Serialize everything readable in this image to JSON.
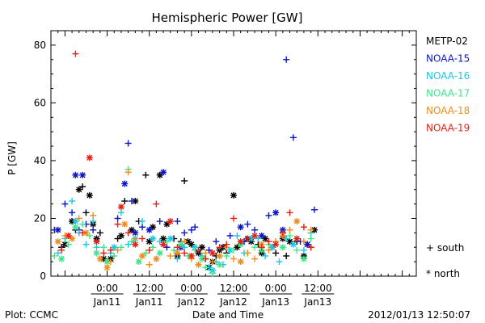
{
  "chart_data": {
    "type": "scatter",
    "title": "Hemispheric Power [GW]",
    "ylabel": "P [GW]",
    "xlabel": "Date and Time",
    "ylim": [
      0,
      85
    ],
    "yticks": [
      0,
      20,
      40,
      60,
      80
    ],
    "xlim_hours": [
      -16,
      88
    ],
    "xtick_labels": [
      {
        "hour": 0,
        "time": "0:00",
        "date": "Jan11"
      },
      {
        "hour": 12,
        "time": "12:00",
        "date": "Jan11"
      },
      {
        "hour": 24,
        "time": "0:00",
        "date": "Jan12"
      },
      {
        "hour": 36,
        "time": "12:00",
        "date": "Jan12"
      },
      {
        "hour": 48,
        "time": "0:00",
        "date": "Jan13"
      },
      {
        "hour": 60,
        "time": "12:00",
        "date": "Jan13"
      }
    ],
    "x_units": "hours relative to 2012/01/11 00:00 UT",
    "markers_legend": {
      "plus": "south",
      "star": "north"
    },
    "footer_left": "Plot: CCMC",
    "footer_right": "2012/01/13 12:50:07",
    "series": [
      {
        "name": "METP-02",
        "color": "#000000",
        "points": [
          [
            -13,
            10,
            "s"
          ],
          [
            -12,
            11,
            "n"
          ],
          [
            -10,
            19,
            "n"
          ],
          [
            -9,
            16,
            "s"
          ],
          [
            -8,
            30,
            "n"
          ],
          [
            -7,
            31,
            "s"
          ],
          [
            -6,
            22,
            "s"
          ],
          [
            -5,
            28,
            "n"
          ],
          [
            -4,
            18,
            "n"
          ],
          [
            -3,
            13,
            "n"
          ],
          [
            -2,
            15,
            "s"
          ],
          [
            -1,
            6,
            "n"
          ],
          [
            1,
            6,
            "n"
          ],
          [
            3,
            13,
            "s"
          ],
          [
            4,
            14,
            "n"
          ],
          [
            5,
            26,
            "s"
          ],
          [
            7,
            16,
            "n"
          ],
          [
            8,
            26,
            "n"
          ],
          [
            9,
            19,
            "s"
          ],
          [
            11,
            35,
            "s"
          ],
          [
            12,
            12,
            "n"
          ],
          [
            13,
            17,
            "n"
          ],
          [
            15,
            35,
            "n"
          ],
          [
            16,
            13,
            "n"
          ],
          [
            17,
            18,
            "n"
          ],
          [
            19,
            13,
            "s"
          ],
          [
            20,
            7,
            "n"
          ],
          [
            21,
            12,
            "s"
          ],
          [
            22,
            33,
            "s"
          ],
          [
            23,
            12,
            "n"
          ],
          [
            24,
            11,
            "n"
          ],
          [
            26,
            8,
            "n"
          ],
          [
            27,
            10,
            "n"
          ],
          [
            28,
            6,
            "s"
          ],
          [
            29,
            3,
            "n"
          ],
          [
            30,
            5,
            "n"
          ],
          [
            31,
            7,
            "s"
          ],
          [
            32,
            9,
            "n"
          ],
          [
            33,
            10,
            "n"
          ],
          [
            34,
            8,
            "s"
          ],
          [
            36,
            28,
            "n"
          ],
          [
            37,
            10,
            "n"
          ],
          [
            38,
            11,
            "s"
          ],
          [
            40,
            13,
            "n"
          ],
          [
            41,
            12,
            "n"
          ],
          [
            43,
            11,
            "s"
          ],
          [
            44,
            8,
            "n"
          ],
          [
            45,
            13,
            "n"
          ],
          [
            47,
            10,
            "n"
          ],
          [
            48,
            8,
            "s"
          ],
          [
            50,
            13,
            "n"
          ],
          [
            51,
            7,
            "s"
          ],
          [
            52,
            12,
            "n"
          ],
          [
            54,
            12,
            "s"
          ],
          [
            56,
            7,
            "n"
          ],
          [
            57,
            11,
            "n"
          ],
          [
            58,
            10,
            "s"
          ],
          [
            59,
            16,
            "n"
          ]
        ]
      },
      {
        "name": "NOAA-15",
        "color": "#0a14c8",
        "points": [
          [
            -15,
            16,
            "s"
          ],
          [
            -14,
            16,
            "n"
          ],
          [
            -12,
            25,
            "s"
          ],
          [
            -10,
            22,
            "s"
          ],
          [
            -9,
            35,
            "n"
          ],
          [
            -8,
            16,
            "s"
          ],
          [
            -7,
            35,
            "n"
          ],
          [
            -6,
            18,
            "s"
          ],
          [
            -4,
            16,
            "s"
          ],
          [
            3,
            20,
            "s"
          ],
          [
            5,
            32,
            "n"
          ],
          [
            6,
            46,
            "s"
          ],
          [
            7,
            26,
            "s"
          ],
          [
            8,
            15,
            "n"
          ],
          [
            10,
            17,
            "s"
          ],
          [
            12,
            16,
            "n"
          ],
          [
            15,
            19,
            "s"
          ],
          [
            16,
            36,
            "n"
          ],
          [
            17,
            10,
            "s"
          ],
          [
            20,
            19,
            "s"
          ],
          [
            21,
            10,
            "n"
          ],
          [
            22,
            15,
            "s"
          ],
          [
            24,
            16,
            "s"
          ],
          [
            25,
            17,
            "s"
          ],
          [
            29,
            9,
            "s"
          ],
          [
            31,
            12,
            "s"
          ],
          [
            35,
            14,
            "s"
          ],
          [
            38,
            17,
            "n"
          ],
          [
            39,
            12,
            "s"
          ],
          [
            40,
            18,
            "s"
          ],
          [
            42,
            16,
            "s"
          ],
          [
            44,
            14,
            "n"
          ],
          [
            46,
            21,
            "s"
          ],
          [
            48,
            22,
            "n"
          ],
          [
            50,
            16,
            "n"
          ],
          [
            51,
            75,
            "s"
          ],
          [
            53,
            48,
            "s"
          ],
          [
            55,
            12,
            "s"
          ],
          [
            57,
            11,
            "n"
          ],
          [
            59,
            23,
            "s"
          ]
        ]
      },
      {
        "name": "NOAA-16",
        "color": "#18c8e6",
        "points": [
          [
            -14,
            8,
            "s"
          ],
          [
            -12,
            13,
            "s"
          ],
          [
            -10,
            26,
            "s"
          ],
          [
            -9,
            19,
            "n"
          ],
          [
            -8,
            15,
            "s"
          ],
          [
            -6,
            11,
            "s"
          ],
          [
            -4,
            19,
            "s"
          ],
          [
            -3,
            10,
            "s"
          ],
          [
            1,
            8,
            "s"
          ],
          [
            2,
            10,
            "n"
          ],
          [
            4,
            22,
            "s"
          ],
          [
            6,
            11,
            "s"
          ],
          [
            8,
            13,
            "n"
          ],
          [
            10,
            19,
            "s"
          ],
          [
            13,
            13,
            "n"
          ],
          [
            15,
            12,
            "s"
          ],
          [
            18,
            13,
            "n"
          ],
          [
            20,
            6,
            "s"
          ],
          [
            22,
            10,
            "s"
          ],
          [
            25,
            10,
            "n"
          ],
          [
            27,
            7,
            "s"
          ],
          [
            29,
            3,
            "s"
          ],
          [
            30,
            2,
            "n"
          ],
          [
            31,
            5,
            "s"
          ],
          [
            33,
            4,
            "s"
          ],
          [
            35,
            9,
            "n"
          ],
          [
            37,
            14,
            "s"
          ],
          [
            39,
            8,
            "s"
          ],
          [
            41,
            13,
            "n"
          ],
          [
            43,
            13,
            "s"
          ],
          [
            45,
            7,
            "s"
          ],
          [
            47,
            10,
            "n"
          ],
          [
            49,
            5,
            "s"
          ],
          [
            51,
            13,
            "s"
          ],
          [
            53,
            11,
            "n"
          ],
          [
            56,
            9,
            "s"
          ],
          [
            58,
            15,
            "s"
          ]
        ]
      },
      {
        "name": "NOAA-17",
        "color": "#3ce68c",
        "points": [
          [
            -15,
            7,
            "s"
          ],
          [
            -13,
            6,
            "n"
          ],
          [
            -11,
            11,
            "s"
          ],
          [
            -9,
            17,
            "n"
          ],
          [
            -7,
            18,
            "s"
          ],
          [
            -5,
            14,
            "s"
          ],
          [
            -3,
            8,
            "n"
          ],
          [
            -1,
            10,
            "s"
          ],
          [
            0,
            5,
            "n"
          ],
          [
            2,
            7,
            "s"
          ],
          [
            4,
            10,
            "s"
          ],
          [
            6,
            37,
            "s"
          ],
          [
            7,
            12,
            "s"
          ],
          [
            9,
            5,
            "n"
          ],
          [
            11,
            8,
            "s"
          ],
          [
            13,
            10,
            "s"
          ],
          [
            15,
            8,
            "n"
          ],
          [
            17,
            12,
            "s"
          ],
          [
            19,
            9,
            "s"
          ],
          [
            21,
            11,
            "n"
          ],
          [
            23,
            7,
            "s"
          ],
          [
            25,
            9,
            "s"
          ],
          [
            27,
            6,
            "n"
          ],
          [
            28,
            3,
            "s"
          ],
          [
            30,
            1,
            "s"
          ],
          [
            32,
            4,
            "n"
          ],
          [
            34,
            7,
            "s"
          ],
          [
            36,
            9,
            "s"
          ],
          [
            38,
            11,
            "n"
          ],
          [
            40,
            8,
            "s"
          ],
          [
            42,
            10,
            "s"
          ],
          [
            44,
            9,
            "n"
          ],
          [
            46,
            11,
            "s"
          ],
          [
            48,
            12,
            "s"
          ],
          [
            50,
            10,
            "n"
          ],
          [
            52,
            14,
            "s"
          ],
          [
            54,
            9,
            "s"
          ],
          [
            56,
            6,
            "n"
          ],
          [
            58,
            13,
            "s"
          ]
        ]
      },
      {
        "name": "NOAA-18",
        "color": "#f08c1e",
        "points": [
          [
            -14,
            12,
            "n"
          ],
          [
            -12,
            14,
            "s"
          ],
          [
            -10,
            13,
            "n"
          ],
          [
            -8,
            20,
            "s"
          ],
          [
            -6,
            15,
            "n"
          ],
          [
            -4,
            21,
            "s"
          ],
          [
            -2,
            6,
            "n"
          ],
          [
            0,
            3,
            "n"
          ],
          [
            1,
            5,
            "s"
          ],
          [
            3,
            9,
            "s"
          ],
          [
            5,
            18,
            "n"
          ],
          [
            6,
            36,
            "s"
          ],
          [
            8,
            13,
            "s"
          ],
          [
            10,
            7,
            "n"
          ],
          [
            12,
            4,
            "s"
          ],
          [
            14,
            6,
            "n"
          ],
          [
            16,
            11,
            "s"
          ],
          [
            18,
            7,
            "s"
          ],
          [
            20,
            8,
            "n"
          ],
          [
            22,
            12,
            "s"
          ],
          [
            24,
            6,
            "s"
          ],
          [
            26,
            4,
            "n"
          ],
          [
            28,
            8,
            "s"
          ],
          [
            30,
            5,
            "s"
          ],
          [
            32,
            7,
            "n"
          ],
          [
            34,
            10,
            "s"
          ],
          [
            36,
            6,
            "s"
          ],
          [
            38,
            5,
            "n"
          ],
          [
            40,
            8,
            "s"
          ],
          [
            42,
            6,
            "s"
          ],
          [
            44,
            11,
            "n"
          ],
          [
            46,
            9,
            "s"
          ],
          [
            48,
            12,
            "s"
          ],
          [
            50,
            14,
            "n"
          ],
          [
            52,
            16,
            "s"
          ],
          [
            54,
            19,
            "n"
          ],
          [
            56,
            12,
            "s"
          ],
          [
            58,
            16,
            "s"
          ]
        ]
      },
      {
        "name": "NOAA-19",
        "color": "#e61e14",
        "points": [
          [
            -13,
            9,
            "s"
          ],
          [
            -11,
            14,
            "n"
          ],
          [
            -9,
            77,
            "s"
          ],
          [
            -7,
            15,
            "s"
          ],
          [
            -5,
            41,
            "n"
          ],
          [
            -3,
            12,
            "n"
          ],
          [
            -1,
            8,
            "s"
          ],
          [
            1,
            9,
            "s"
          ],
          [
            3,
            18,
            "s"
          ],
          [
            4,
            24,
            "n"
          ],
          [
            6,
            15,
            "s"
          ],
          [
            8,
            11,
            "n"
          ],
          [
            10,
            13,
            "s"
          ],
          [
            12,
            9,
            "s"
          ],
          [
            14,
            25,
            "s"
          ],
          [
            16,
            11,
            "n"
          ],
          [
            18,
            19,
            "n"
          ],
          [
            20,
            10,
            "s"
          ],
          [
            22,
            8,
            "s"
          ],
          [
            24,
            7,
            "n"
          ],
          [
            26,
            9,
            "s"
          ],
          [
            28,
            6,
            "s"
          ],
          [
            30,
            8,
            "n"
          ],
          [
            32,
            10,
            "s"
          ],
          [
            34,
            11,
            "s"
          ],
          [
            36,
            20,
            "s"
          ],
          [
            38,
            12,
            "n"
          ],
          [
            40,
            13,
            "s"
          ],
          [
            42,
            14,
            "n"
          ],
          [
            44,
            10,
            "s"
          ],
          [
            46,
            12,
            "s"
          ],
          [
            48,
            11,
            "n"
          ],
          [
            50,
            15,
            "s"
          ],
          [
            52,
            22,
            "s"
          ],
          [
            54,
            13,
            "n"
          ],
          [
            56,
            17,
            "s"
          ],
          [
            58,
            10,
            "s"
          ]
        ]
      }
    ]
  }
}
